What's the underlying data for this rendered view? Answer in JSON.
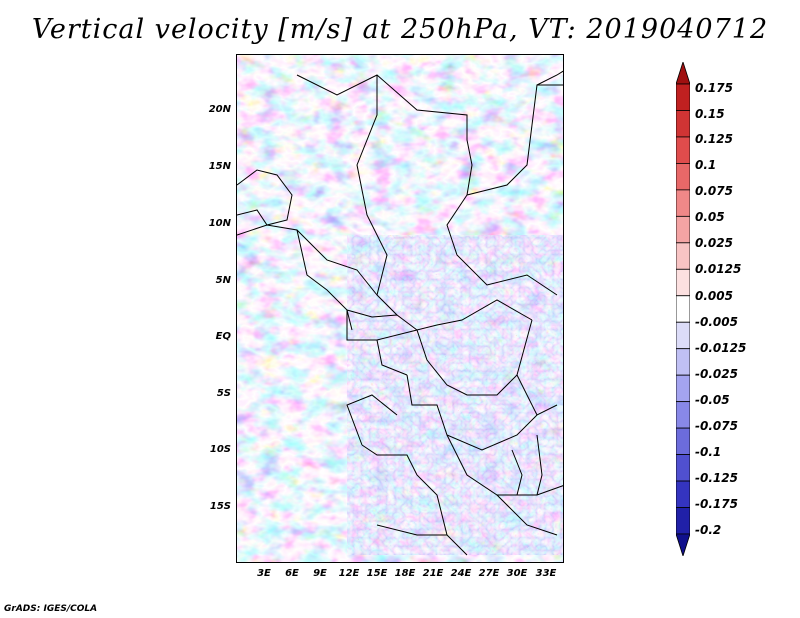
{
  "title": "Vertical velocity [m/s] at 250hPa, VT: 2019040712",
  "credit": "GrADS: IGES/COLA",
  "latitude_ticks": [
    "20N",
    "15N",
    "10N",
    "5N",
    "EQ",
    "5S",
    "10S",
    "15S"
  ],
  "longitude_ticks": [
    "3E",
    "6E",
    "9E",
    "12E",
    "15E",
    "18E",
    "21E",
    "24E",
    "27E",
    "30E",
    "33E"
  ],
  "colorbar": {
    "labels": [
      "0.175",
      "0.15",
      "0.125",
      "0.1",
      "0.075",
      "0.05",
      "0.025",
      "0.0125",
      "0.005",
      "-0.005",
      "-0.0125",
      "-0.025",
      "-0.05",
      "-0.075",
      "-0.1",
      "-0.125",
      "-0.175",
      "-0.2"
    ],
    "colors": [
      "#a01010",
      "#c02020",
      "#d03434",
      "#e04c4c",
      "#e86868",
      "#f08888",
      "#f4a4a4",
      "#f8c4c4",
      "#fce0e0",
      "#ffffff",
      "#dcdcf8",
      "#c0c0f4",
      "#a4a4f0",
      "#8888e8",
      "#6c6cdc",
      "#5050d0",
      "#3434c0",
      "#2020a8",
      "#10108c"
    ]
  },
  "map": {
    "lon_range": [
      0,
      35
    ],
    "lat_range": [
      -20,
      24
    ],
    "field": "vertical velocity at 250hPa"
  }
}
